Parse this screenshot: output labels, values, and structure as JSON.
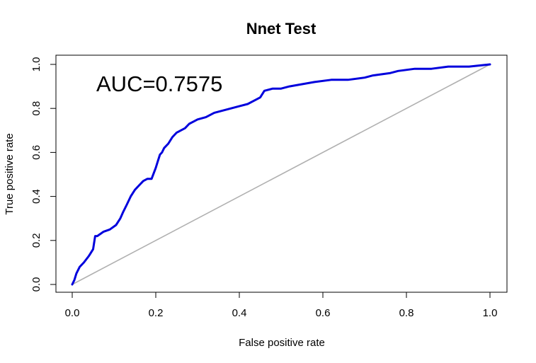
{
  "chart_data": {
    "type": "line",
    "title": "Nnet Test",
    "xlabel": "False positive rate",
    "ylabel": "True positive rate",
    "xlim": [
      0,
      1
    ],
    "ylim": [
      0,
      1
    ],
    "x_ticks": [
      "0.0",
      "0.2",
      "0.4",
      "0.6",
      "0.8",
      "1.0"
    ],
    "y_ticks": [
      "0.0",
      "0.2",
      "0.4",
      "0.6",
      "0.8",
      "1.0"
    ],
    "grid": false,
    "legend": "none",
    "annotation": "AUC=0.7575",
    "series": [
      {
        "color": "#0000dd",
        "x": [
          0.0,
          0.005,
          0.01,
          0.018,
          0.028,
          0.04,
          0.05,
          0.055,
          0.06,
          0.075,
          0.09,
          0.105,
          0.115,
          0.122,
          0.13,
          0.14,
          0.15,
          0.16,
          0.17,
          0.18,
          0.19,
          0.2,
          0.205,
          0.21,
          0.215,
          0.22,
          0.23,
          0.24,
          0.25,
          0.26,
          0.27,
          0.28,
          0.29,
          0.3,
          0.32,
          0.34,
          0.36,
          0.38,
          0.4,
          0.42,
          0.44,
          0.45,
          0.46,
          0.48,
          0.5,
          0.52,
          0.55,
          0.58,
          0.62,
          0.66,
          0.7,
          0.72,
          0.76,
          0.78,
          0.82,
          0.86,
          0.9,
          0.95,
          1.0
        ],
        "y": [
          0.0,
          0.02,
          0.05,
          0.08,
          0.1,
          0.13,
          0.16,
          0.22,
          0.22,
          0.24,
          0.25,
          0.27,
          0.3,
          0.33,
          0.36,
          0.4,
          0.43,
          0.45,
          0.47,
          0.48,
          0.48,
          0.53,
          0.56,
          0.59,
          0.6,
          0.62,
          0.64,
          0.67,
          0.69,
          0.7,
          0.71,
          0.73,
          0.74,
          0.75,
          0.76,
          0.78,
          0.79,
          0.8,
          0.81,
          0.82,
          0.84,
          0.85,
          0.88,
          0.89,
          0.89,
          0.9,
          0.91,
          0.92,
          0.93,
          0.93,
          0.94,
          0.95,
          0.96,
          0.97,
          0.98,
          0.98,
          0.99,
          0.99,
          1.0
        ]
      },
      {
        "color": "#b0b0b0",
        "x": [
          0,
          1
        ],
        "y": [
          0,
          1
        ]
      }
    ]
  }
}
